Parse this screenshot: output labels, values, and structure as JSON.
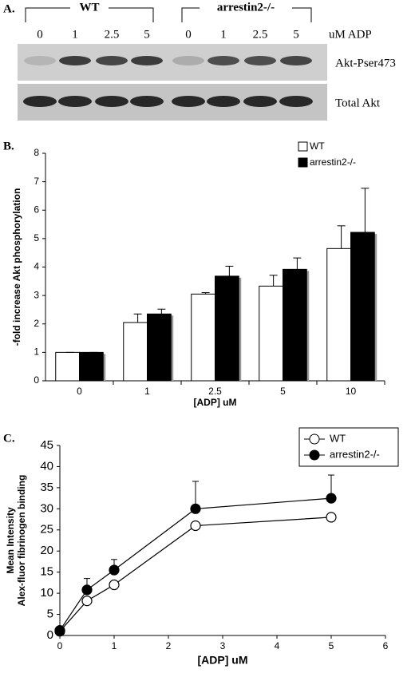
{
  "panel_a": {
    "label": "A.",
    "groups": [
      "WT",
      "arrestin2-/-"
    ],
    "lanes": [
      "0",
      "1",
      "2.5",
      "5",
      "0",
      "1",
      "2.5",
      "5"
    ],
    "unit": "uM ADP",
    "rows": [
      "Akt-Pser473",
      "Total Akt"
    ]
  },
  "chart_data": [
    {
      "type": "bar",
      "label": "B.",
      "xlabel": "[ADP] uM",
      "ylabel": "-fold increase Akt phosphorylation",
      "categories": [
        "0",
        "1",
        "2.5",
        "5",
        "10"
      ],
      "series": [
        {
          "name": "WT",
          "color": "#ffffff",
          "values": [
            1,
            2.05,
            3.05,
            3.33,
            4.65
          ],
          "errors": [
            0,
            0.3,
            0.05,
            0.38,
            0.8
          ]
        },
        {
          "name": "arrestin2-/-",
          "color": "#000000",
          "values": [
            1,
            2.35,
            3.68,
            3.92,
            5.22
          ],
          "errors": [
            0,
            0.17,
            0.35,
            0.4,
            1.55
          ]
        }
      ],
      "ylim": [
        0,
        8
      ],
      "yticks": [
        0,
        1,
        2,
        3,
        4,
        5,
        6,
        7,
        8
      ],
      "grid": false,
      "legend": "top-right"
    },
    {
      "type": "line",
      "label": "C.",
      "xlabel": "[ADP] uM",
      "ylabel": [
        "Mean Intensity",
        "Alex-fluor fibrinogen binding"
      ],
      "x": [
        0,
        0.5,
        1,
        2.5,
        5
      ],
      "series": [
        {
          "name": "WT",
          "color": "#ffffff",
          "values": [
            1,
            8.2,
            12,
            26,
            28
          ]
        },
        {
          "name": "arrestin2-/-",
          "color": "#000000",
          "values": [
            1.2,
            10.8,
            15.5,
            30,
            32.5
          ],
          "errors": [
            0,
            2.7,
            2.5,
            6.5,
            5.5
          ]
        }
      ],
      "xlim": [
        0,
        6
      ],
      "xticks": [
        0,
        1,
        2,
        3,
        4,
        5,
        6
      ],
      "ylim": [
        0,
        45
      ],
      "yticks": [
        0,
        5,
        10,
        15,
        20,
        25,
        30,
        35,
        40,
        45
      ],
      "grid": false,
      "legend": "top-right"
    }
  ]
}
